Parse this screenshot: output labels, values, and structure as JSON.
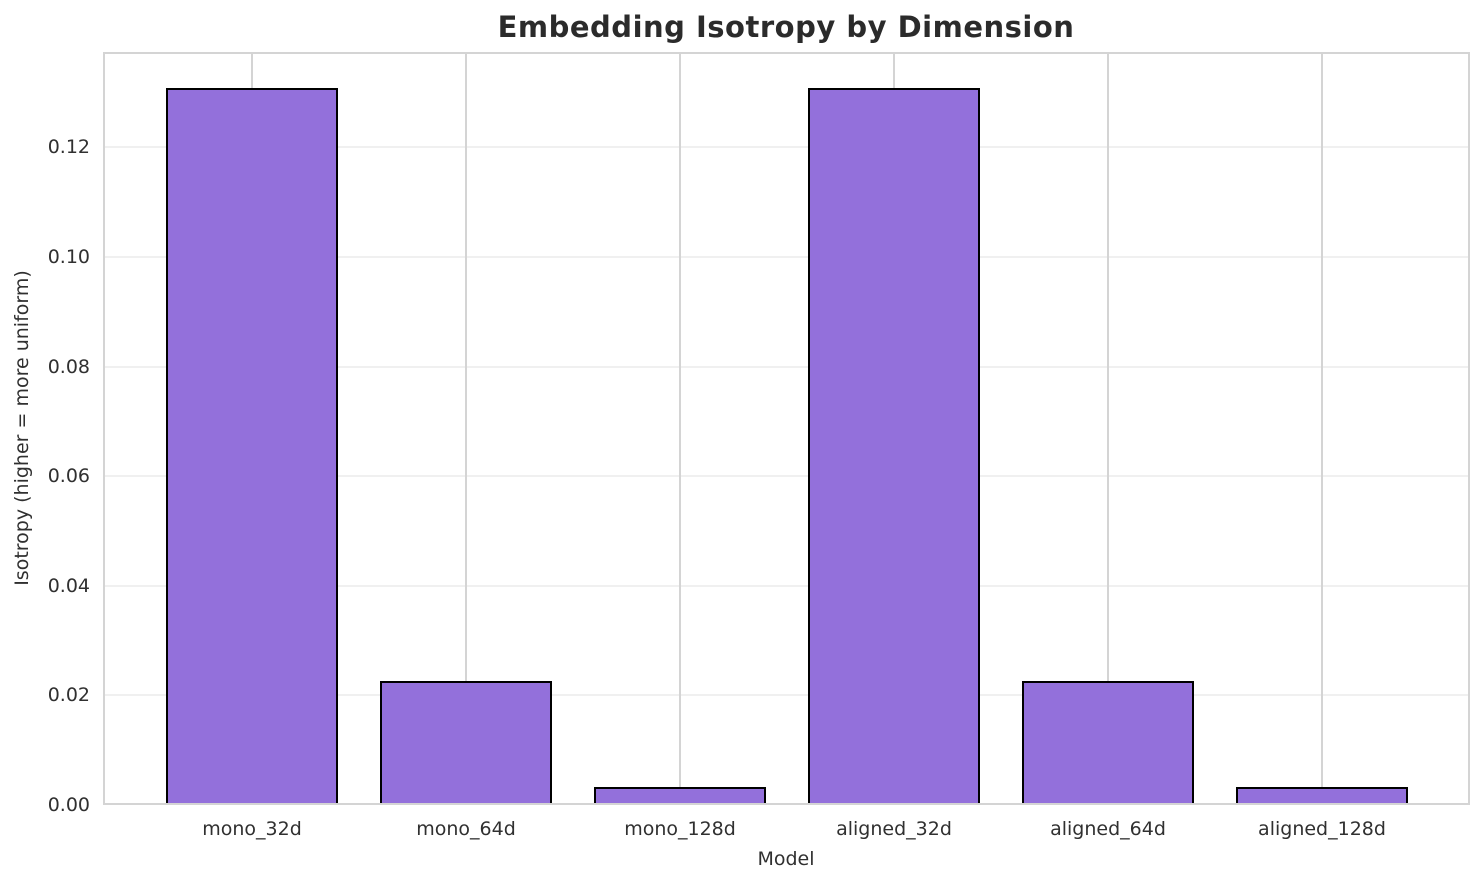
{
  "chart_data": {
    "type": "bar",
    "title": "Embedding Isotropy by Dimension",
    "xlabel": "Model",
    "ylabel": "Isotropy (higher = more uniform)",
    "categories": [
      "mono_32d",
      "mono_64d",
      "mono_128d",
      "aligned_32d",
      "aligned_64d",
      "aligned_128d"
    ],
    "values": [
      0.1308,
      0.0226,
      0.0033,
      0.1308,
      0.0226,
      0.0033
    ],
    "ylim": [
      0,
      0.1374
    ],
    "yticks": [
      0.0,
      0.02,
      0.04,
      0.06,
      0.08,
      0.1,
      0.12
    ],
    "ytick_labels": [
      "0.00",
      "0.02",
      "0.04",
      "0.06",
      "0.08",
      "0.10",
      "0.12"
    ],
    "grid": true,
    "legend_position": "none",
    "colors": {
      "bar_fill": "#9370DB",
      "bar_edge": "#000000",
      "grid_vertical": "#d4d4d4",
      "grid_horizontal": "#f0f0f0",
      "spine": "#d4d4d4",
      "tick_text": "#303030",
      "title_text": "#2b2b2b",
      "background": "#ffffff"
    }
  }
}
